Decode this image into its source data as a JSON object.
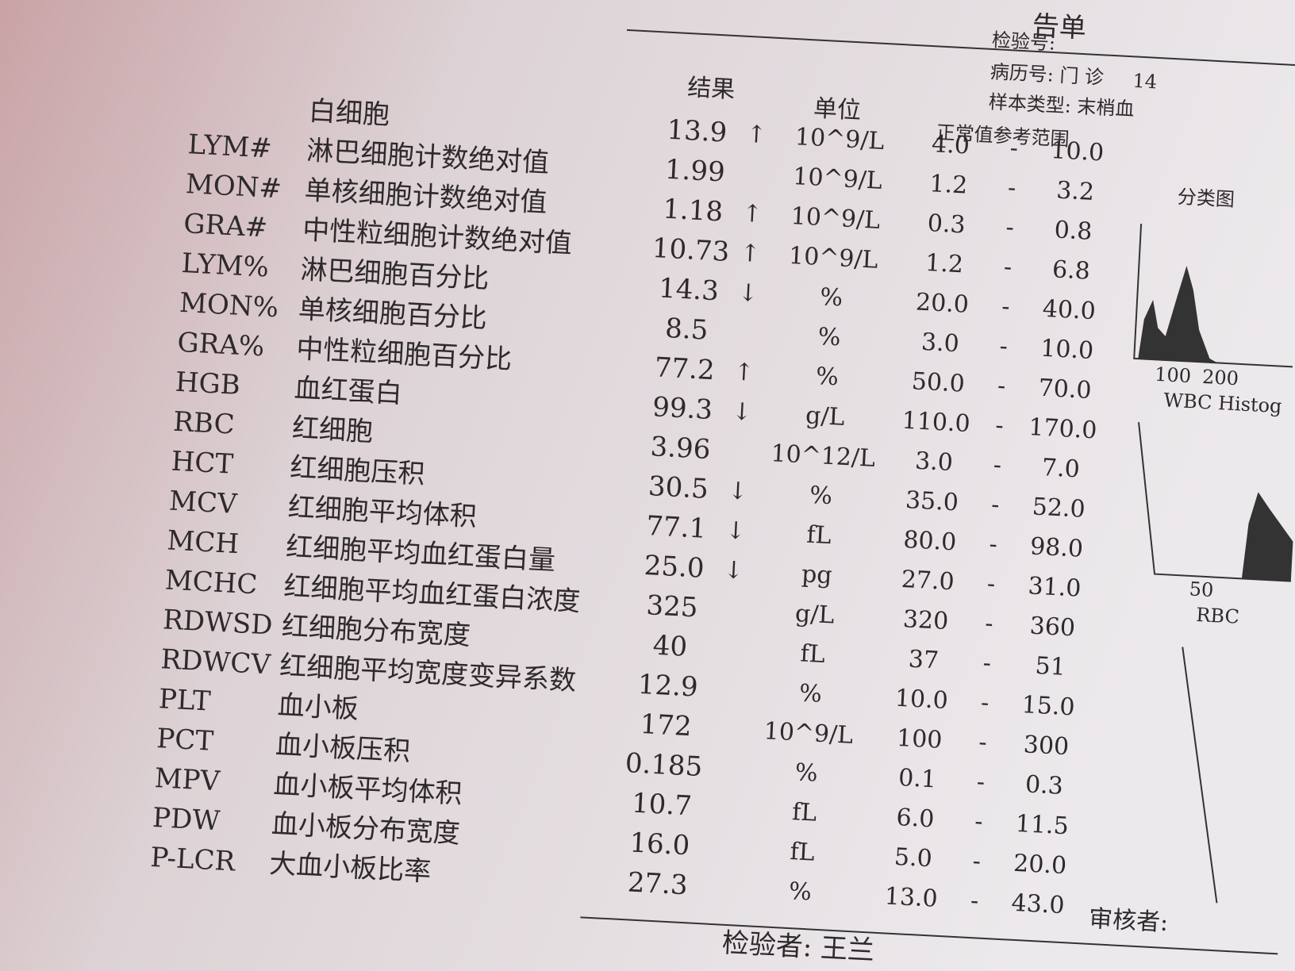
{
  "header": {
    "title_fragment": "告单",
    "lab_no": "检验号:",
    "record_no": "病历号: 门 诊",
    "record_value": "14",
    "sample_type": "样本类型: 末梢血"
  },
  "columns": {
    "result": "结果",
    "unit": "单位",
    "range": "正常值参考范围"
  },
  "range_separator": "-",
  "rows": [
    {
      "name": "白细胞",
      "result": "13.9",
      "flag": "↑",
      "unit": "10^9/L",
      "low": "4.0",
      "high": "10.0"
    },
    {
      "code": "LYM#",
      "name": "淋巴细胞计数绝对值",
      "result": "1.99",
      "unit": "10^9/L",
      "low": "1.2",
      "high": "3.2"
    },
    {
      "code": "MON#",
      "name": "单核细胞计数绝对值",
      "result": "1.18",
      "flag": "↑",
      "unit": "10^9/L",
      "low": "0.3",
      "high": "0.8"
    },
    {
      "code": "GRA#",
      "name": "中性粒细胞计数绝对值",
      "result": "10.73",
      "flag": "↑",
      "unit": "10^9/L",
      "low": "1.2",
      "high": "6.8"
    },
    {
      "code": "LYM%",
      "name": "淋巴细胞百分比",
      "result": "14.3",
      "flag": "↓",
      "unit": "%",
      "low": "20.0",
      "high": "40.0"
    },
    {
      "code": "MON%",
      "name": "单核细胞百分比",
      "result": "8.5",
      "unit": "%",
      "low": "3.0",
      "high": "10.0"
    },
    {
      "code": "GRA%",
      "name": "中性粒细胞百分比",
      "result": "77.2",
      "flag": "↑",
      "unit": "%",
      "low": "50.0",
      "high": "70.0"
    },
    {
      "code": "HGB",
      "name": "血红蛋白",
      "result": "99.3",
      "flag": "↓",
      "unit": "g/L",
      "low": "110.0",
      "high": "170.0"
    },
    {
      "code": "RBC",
      "name": "红细胞",
      "result": "3.96",
      "unit": "10^12/L",
      "low": "3.0",
      "high": "7.0"
    },
    {
      "code": "HCT",
      "name": "红细胞压积",
      "result": "30.5",
      "flag": "↓",
      "unit": "%",
      "low": "35.0",
      "high": "52.0"
    },
    {
      "code": "MCV",
      "name": "红细胞平均体积",
      "result": "77.1",
      "flag": "↓",
      "unit": "fL",
      "low": "80.0",
      "high": "98.0"
    },
    {
      "code": "MCH",
      "name": "红细胞平均血红蛋白量",
      "result": "25.0",
      "flag": "↓",
      "unit": "pg",
      "low": "27.0",
      "high": "31.0"
    },
    {
      "code": "MCHC",
      "name": "红细胞平均血红蛋白浓度",
      "result": "325",
      "unit": "g/L",
      "low": "320",
      "high": "360"
    },
    {
      "code": "RDWSD",
      "name": "红细胞分布宽度",
      "result": "40",
      "unit": "fL",
      "low": "37",
      "high": "51"
    },
    {
      "code": "RDWCV",
      "name": "红细胞平均宽度变异系数",
      "result": "12.9",
      "unit": "%",
      "low": "10.0",
      "high": "15.0"
    },
    {
      "code": "PLT",
      "name": "血小板",
      "result": "172",
      "unit": "10^9/L",
      "low": "100",
      "high": "300"
    },
    {
      "code": "PCT",
      "name": "血小板压积",
      "result": "0.185",
      "unit": "%",
      "low": "0.1",
      "high": "0.3"
    },
    {
      "code": "MPV",
      "name": "血小板平均体积",
      "result": "10.7",
      "unit": "fL",
      "low": "6.0",
      "high": "11.5"
    },
    {
      "code": "PDW",
      "name": "血小板分布宽度",
      "result": "16.0",
      "unit": "fL",
      "low": "5.0",
      "high": "20.0"
    },
    {
      "code": "P-LCR",
      "name": "大血小板比率",
      "result": "27.3",
      "unit": "%",
      "low": "13.0",
      "high": "43.0"
    }
  ],
  "histograms": {
    "title": "分类图",
    "wbc_ticks": [
      "100",
      "200"
    ],
    "wbc_label": "WBC Histog",
    "rbc_tick": "50",
    "rbc_label": "RBC"
  },
  "footer": {
    "tester": "检验者: 王兰",
    "reviewer": "审核者:"
  }
}
